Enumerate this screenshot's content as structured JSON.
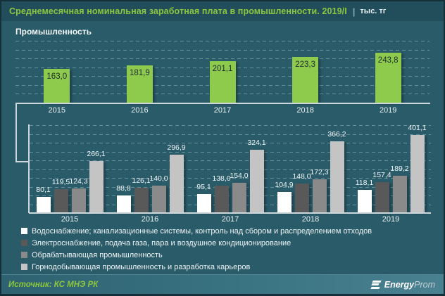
{
  "title_bar": {
    "title": "Среднемесячная номинальная заработная плата в промышленности. 2019/I",
    "separator": "|",
    "units": "тыс. тг"
  },
  "chart_data": [
    {
      "type": "bar",
      "title": "Промышленность",
      "categories": [
        "2015",
        "2016",
        "2017",
        "2018",
        "2019"
      ],
      "values": [
        163.0,
        181.9,
        201.1,
        223.3,
        243.8
      ],
      "labels": [
        "163,0",
        "181,9",
        "201,1",
        "223,3",
        "243,8"
      ],
      "bar_color": "#8ecb4d",
      "ylim": [
        0,
        312
      ],
      "grid": true,
      "value_label_position": "inside-top"
    },
    {
      "type": "bar",
      "categories": [
        "2015",
        "2016",
        "2017",
        "2018",
        "2019"
      ],
      "series": [
        {
          "name": "Водоснабжение; канализационные системы, контроль над сбором и распределением отходов",
          "color": "#ffffff",
          "values": [
            80.1,
            88.8,
            95.1,
            104.9,
            118.1
          ],
          "labels": [
            "80,1",
            "88,8",
            "95,1",
            "104,9",
            "118,1"
          ]
        },
        {
          "name": "Электроснабжение, подача газа, пара и воздушное кондиционирование",
          "color": "#595959",
          "values": [
            119.5,
            126.1,
            138.0,
            148.0,
            157.4
          ],
          "labels": [
            "119,5",
            "126,1",
            "138,0",
            "148,0",
            "157,4"
          ]
        },
        {
          "name": "Обрабатывающая промышленность",
          "color": "#8a8a8a",
          "values": [
            124.3,
            140.0,
            154.0,
            172.3,
            189.2
          ],
          "labels": [
            "124,3",
            "140,0",
            "154,0",
            "172,3",
            "189,2"
          ]
        },
        {
          "name": "Горнодобывающая промышленность и разработка карьеров",
          "color": "#c4c4c4",
          "values": [
            266.1,
            296.9,
            324.1,
            366.2,
            401.1
          ],
          "labels": [
            "266,1",
            "296,9",
            "324,1",
            "366,2",
            "401,1"
          ]
        }
      ],
      "ylim": [
        0,
        455
      ],
      "grid": true,
      "legend_position": "bottom",
      "value_label_position": "outside-top"
    }
  ],
  "footer": {
    "source": "Источник: КС МНЭ РК",
    "logo": {
      "bold": "Energy",
      "light": "Prom"
    }
  },
  "colors": {
    "background": "#2a5b69",
    "title_bar_background": "#224e5c",
    "title_text": "#8cc63e",
    "axis": "#ccd8dc",
    "gridline": "rgba(151,188,199,0.55)",
    "industry_bar": "#8ecb4d",
    "series": [
      "#ffffff",
      "#595959",
      "#8a8a8a",
      "#c4c4c4"
    ]
  }
}
